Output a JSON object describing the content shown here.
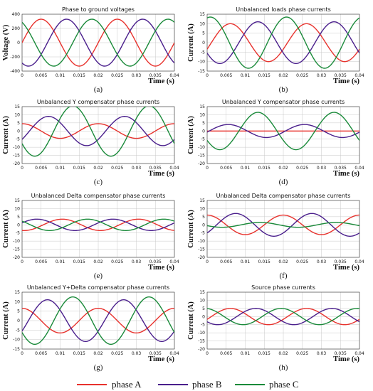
{
  "legend": [
    {
      "label": "phase A",
      "color": "#e8322d"
    },
    {
      "label": "phase B",
      "color": "#4a1f8c"
    },
    {
      "label": "phase C",
      "color": "#1a8a3a"
    }
  ],
  "chart_data": [
    {
      "panel": "(a)",
      "type": "line",
      "title": "Phase to ground voltages",
      "xlabel": "Time (s)",
      "ylabel": "Voltage (V)",
      "xlim": [
        0,
        0.04
      ],
      "ylim": [
        -400,
        400
      ],
      "xticks": [
        "0",
        "0.005",
        "0.01",
        "0.015",
        "0.02",
        "0.025",
        "0.03",
        "0.035",
        "0.04"
      ],
      "yticks": [
        "400",
        "200",
        "0",
        "-200",
        "-400"
      ],
      "grid": true,
      "frequency_hz": 50,
      "series": [
        {
          "name": "phase A",
          "amplitude": 330,
          "phase_deg": 0
        },
        {
          "name": "phase B",
          "amplitude": 330,
          "phase_deg": -120
        },
        {
          "name": "phase C",
          "amplitude": 330,
          "phase_deg": 120
        }
      ]
    },
    {
      "panel": "(b)",
      "type": "line",
      "title": "Unbalanced loads phase currents",
      "xlabel": "Time (s)",
      "ylabel": "Current (A)",
      "xlim": [
        0,
        0.04
      ],
      "ylim": [
        -15,
        15
      ],
      "xticks": [
        "0",
        "0.005",
        "0.01",
        "0.015",
        "0.02",
        "0.025",
        "0.03",
        "0.035",
        "0.04"
      ],
      "yticks": [
        "15",
        "10",
        "5",
        "0",
        "-5",
        "-10",
        "-15"
      ],
      "grid": true,
      "frequency_hz": 50,
      "series": [
        {
          "name": "phase A",
          "amplitude": 10,
          "phase_deg": -20
        },
        {
          "name": "phase B",
          "amplitude": 11,
          "phase_deg": -150
        },
        {
          "name": "phase C",
          "amplitude": 13.5,
          "phase_deg": 75
        }
      ]
    },
    {
      "panel": "(c)",
      "type": "line",
      "title": "Unbalanced Y compensator phase currents",
      "xlabel": "Time (s)",
      "ylabel": "Current (A)",
      "xlim": [
        0,
        0.04
      ],
      "ylim": [
        -20,
        15
      ],
      "xticks": [
        "0",
        "0.005",
        "0.01",
        "0.015",
        "0.02",
        "0.025",
        "0.03",
        "0.035",
        "0.04"
      ],
      "yticks": [
        "15",
        "10",
        "5",
        "0",
        "-5",
        "-10",
        "-15",
        "-20"
      ],
      "grid": true,
      "frequency_hz": 50,
      "series": [
        {
          "name": "phase A",
          "amplitude": 4.5,
          "phase_deg": 90
        },
        {
          "name": "phase B",
          "amplitude": 9,
          "phase_deg": -35
        },
        {
          "name": "phase C",
          "amplitude": 15.5,
          "phase_deg": -150
        }
      ]
    },
    {
      "panel": "(d)",
      "type": "line",
      "title": "Unbalanced Y compensator phase currents",
      "xlabel": "Time (s)",
      "ylabel": "Current (A)",
      "xlim": [
        0,
        0.04
      ],
      "ylim": [
        -20,
        15
      ],
      "xticks": [
        "0",
        "0.005",
        "0.01",
        "0.015",
        "0.02",
        "0.025",
        "0.03",
        "0.035",
        "0.04"
      ],
      "yticks": [
        "15",
        "10",
        "5",
        "0",
        "-5",
        "-10",
        "-15",
        "-20"
      ],
      "grid": true,
      "frequency_hz": 50,
      "series": [
        {
          "name": "phase A",
          "amplitude": 0,
          "phase_deg": 0
        },
        {
          "name": "phase B",
          "amplitude": 4,
          "phase_deg": -10
        },
        {
          "name": "phase C",
          "amplitude": 11.5,
          "phase_deg": -150
        }
      ]
    },
    {
      "panel": "(e)",
      "type": "line",
      "title": "Unbalanced  Delta compensator phase currents",
      "xlabel": "Time (s)",
      "ylabel": "Current (A)",
      "xlim": [
        0,
        0.04
      ],
      "ylim": [
        -20,
        15
      ],
      "xticks": [
        "0",
        "0.005",
        "0.01",
        "0.015",
        "0.02",
        "0.025",
        "0.03",
        "0.035",
        "0.04"
      ],
      "yticks": [
        "15",
        "10",
        "5",
        "0",
        "-5",
        "-10",
        "-15",
        "-20"
      ],
      "grid": true,
      "frequency_hz": 50,
      "series": [
        {
          "name": "phase A",
          "amplitude": 3.5,
          "phase_deg": -100
        },
        {
          "name": "phase B",
          "amplitude": 3.5,
          "phase_deg": 20
        },
        {
          "name": "phase C",
          "amplitude": 3.5,
          "phase_deg": 140
        }
      ]
    },
    {
      "panel": "(f)",
      "type": "line",
      "title": "Unbalanced  Delta compensator phase currents",
      "xlabel": "Time (s)",
      "ylabel": "Current (A)",
      "xlim": [
        0,
        0.04
      ],
      "ylim": [
        -20,
        15
      ],
      "xticks": [
        "0",
        "0.005",
        "0.01",
        "0.015",
        "0.02",
        "0.025",
        "0.03",
        "0.035",
        "0.04"
      ],
      "yticks": [
        "15",
        "10",
        "5",
        "0",
        "-5",
        "-10",
        "-15",
        "-20"
      ],
      "grid": true,
      "frequency_hz": 50,
      "series": [
        {
          "name": "phase A",
          "amplitude": 6,
          "phase_deg": 90
        },
        {
          "name": "phase B",
          "amplitude": 7,
          "phase_deg": -45
        },
        {
          "name": "phase C",
          "amplitude": 1.5,
          "phase_deg": -160
        }
      ]
    },
    {
      "panel": "(g)",
      "type": "line",
      "title": "Unbalanced Y+Delta compensator phase currents",
      "xlabel": "Time (s)",
      "ylabel": "Current (A)",
      "xlim": [
        0,
        0.04
      ],
      "ylim": [
        -15,
        15
      ],
      "xticks": [
        "0",
        "0.005",
        "0.01",
        "0.015",
        "0.02",
        "0.025",
        "0.03",
        "0.035",
        "0.04"
      ],
      "yticks": [
        "15",
        "10",
        "5",
        "0",
        "-5",
        "-10",
        "-15"
      ],
      "grid": true,
      "frequency_hz": 50,
      "series": [
        {
          "name": "phase A",
          "amplitude": 6.5,
          "phase_deg": 90
        },
        {
          "name": "phase B",
          "amplitude": 11,
          "phase_deg": -30
        },
        {
          "name": "phase C",
          "amplitude": 12.5,
          "phase_deg": -150
        }
      ]
    },
    {
      "panel": "(h)",
      "type": "line",
      "title": "Source phase currents",
      "xlabel": "Time (s)",
      "ylabel": "Current (A)",
      "xlim": [
        0,
        0.04
      ],
      "ylim": [
        -20,
        15
      ],
      "xticks": [
        "0",
        "0.005",
        "0.01",
        "0.015",
        "0.02",
        "0.025",
        "0.03",
        "0.035",
        "0.04"
      ],
      "yticks": [
        "15",
        "10",
        "5",
        "0",
        "-5",
        "-10",
        "-15",
        "-20"
      ],
      "grid": true,
      "frequency_hz": 50,
      "series": [
        {
          "name": "phase A",
          "amplitude": 5,
          "phase_deg": -20
        },
        {
          "name": "phase B",
          "amplitude": 5,
          "phase_deg": -140
        },
        {
          "name": "phase C",
          "amplitude": 5,
          "phase_deg": 100
        }
      ]
    }
  ]
}
